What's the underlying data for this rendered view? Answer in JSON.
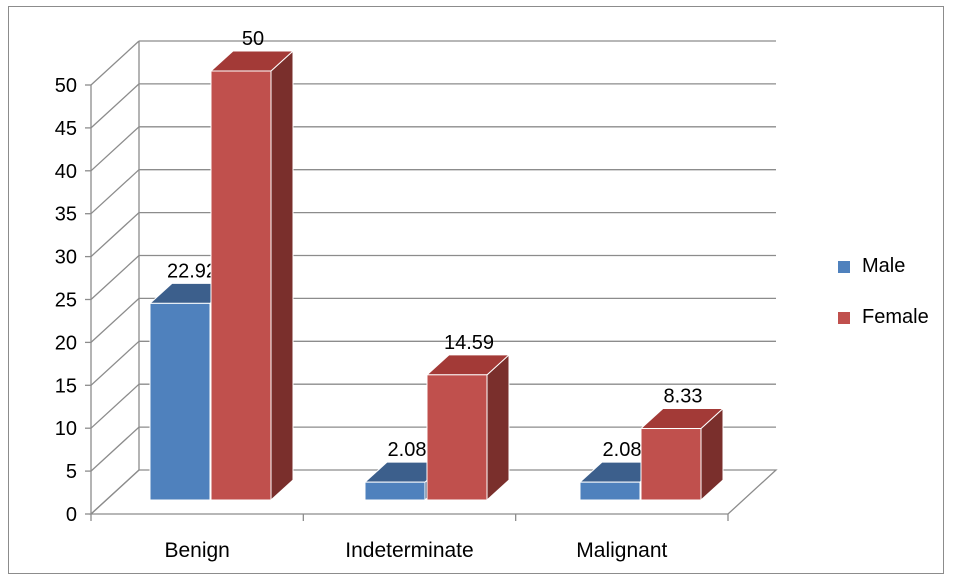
{
  "chart_data": {
    "type": "bar",
    "categories": [
      "Benign",
      "Indeterminate",
      "Malignant"
    ],
    "series": [
      {
        "name": "Male",
        "values": [
          22.92,
          2.08,
          2.08
        ],
        "color": "#4F81BD",
        "top_color": "#3C5F8C",
        "side_color": "#30507A"
      },
      {
        "name": "Female",
        "values": [
          50,
          14.59,
          8.33
        ],
        "color": "#C0504D",
        "top_color": "#A33A37",
        "side_color": "#7A2F2C"
      }
    ],
    "data_labels": [
      [
        "22.92",
        "2.08",
        "2.08"
      ],
      [
        "50",
        "14.59",
        "8.33"
      ]
    ],
    "ylim": [
      0,
      50
    ],
    "yticks": [
      0,
      5,
      10,
      15,
      20,
      25,
      30,
      35,
      40,
      45,
      50
    ],
    "grid": true,
    "legend_position": "right",
    "style": "3d-clustered-column"
  }
}
